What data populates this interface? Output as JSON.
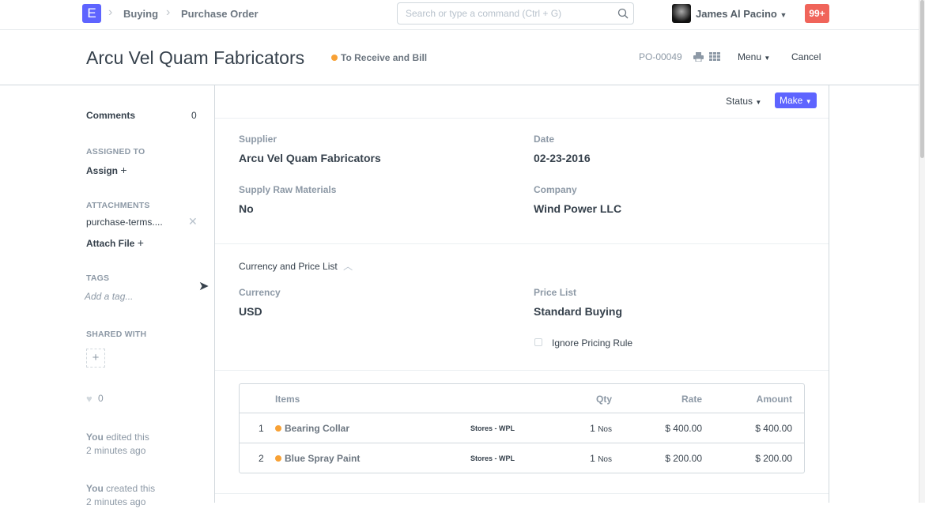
{
  "navbar": {
    "logo": "E",
    "breadcrumbs": [
      "Buying",
      "Purchase Order"
    ],
    "search_placeholder": "Search or type a command (Ctrl + G)",
    "user": "James Al Pacino",
    "notifications": "99+"
  },
  "header": {
    "title": "Arcu Vel Quam Fabricators",
    "status": "To Receive and Bill",
    "status_color": "#f8a135",
    "doc_id": "PO-00049",
    "menu": "Menu",
    "cancel": "Cancel"
  },
  "toolbar": {
    "status": "Status",
    "make": "Make"
  },
  "sidebar": {
    "comments_label": "Comments",
    "comments_count": "0",
    "assigned_to": "ASSIGNED TO",
    "assign": "Assign",
    "attachments": "ATTACHMENTS",
    "attachment_file": "purchase-terms....",
    "attach_file": "Attach File",
    "tags": "TAGS",
    "add_tag": "Add a tag...",
    "shared_with": "SHARED WITH",
    "likes": "0",
    "activity": [
      {
        "who": "You",
        "what": " edited this",
        "when": "2 minutes ago"
      },
      {
        "who": "You",
        "what": " created this",
        "when": "2 minutes ago"
      }
    ]
  },
  "fields": {
    "supplier_label": "Supplier",
    "supplier": "Arcu Vel Quam Fabricators",
    "date_label": "Date",
    "date": "02-23-2016",
    "raw_label": "Supply Raw Materials",
    "raw": "No",
    "company_label": "Company",
    "company": "Wind Power LLC"
  },
  "currency_section": {
    "title": "Currency and Price List",
    "currency_label": "Currency",
    "currency": "USD",
    "price_list_label": "Price List",
    "price_list": "Standard Buying",
    "ignore_pricing": "Ignore Pricing Rule"
  },
  "items": {
    "headers": {
      "items": "Items",
      "qty": "Qty",
      "rate": "Rate",
      "amount": "Amount"
    },
    "rows": [
      {
        "idx": "1",
        "item": "Bearing Collar",
        "warehouse": "Stores - WPL",
        "qty": "1",
        "uom": "Nos",
        "rate": "$ 400.00",
        "amount": "$ 400.00"
      },
      {
        "idx": "2",
        "item": "Blue Spray Paint",
        "warehouse": "Stores - WPL",
        "qty": "1",
        "uom": "Nos",
        "rate": "$ 200.00",
        "amount": "$ 200.00"
      }
    ]
  }
}
